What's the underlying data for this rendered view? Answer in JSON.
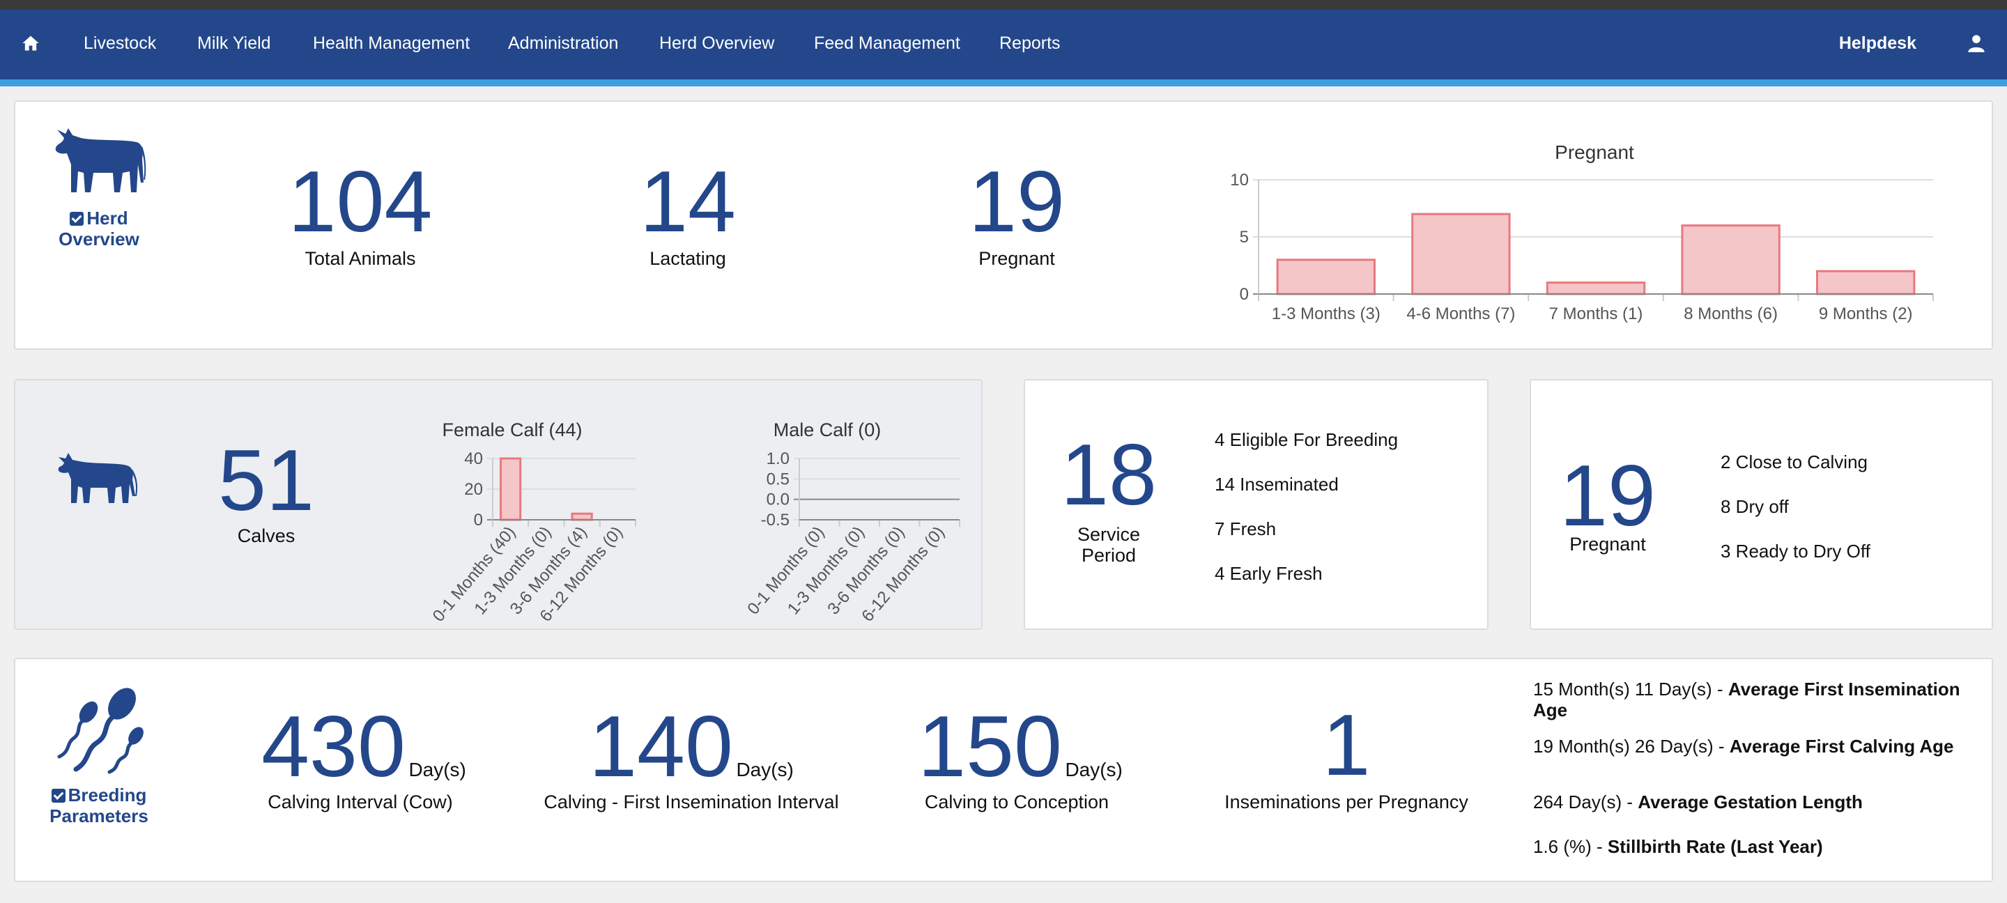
{
  "nav": {
    "items": [
      "Livestock",
      "Milk Yield",
      "Health Management",
      "Administration",
      "Herd Overview",
      "Feed Management",
      "Reports"
    ],
    "helpdesk": "Helpdesk"
  },
  "herd": {
    "title": "Herd Overview",
    "total": "104",
    "total_label": "Total Animals",
    "lactating": "14",
    "lactating_label": "Lactating",
    "pregnant": "19",
    "pregnant_label": "Pregnant"
  },
  "calves": {
    "count": "51",
    "label": "Calves"
  },
  "service": {
    "count": "18",
    "label": "Service Period",
    "items": [
      "4 Eligible For Breeding",
      "14 Inseminated",
      "7 Fresh",
      "4 Early Fresh"
    ]
  },
  "pregnancy": {
    "count": "19",
    "label": "Pregnant",
    "items": [
      "2 Close to Calving",
      "8 Dry off",
      "3 Ready to Dry Off"
    ]
  },
  "breeding": {
    "title": "Breeding Parameters",
    "calving_interval": "430",
    "calving_interval_unit": "Day(s)",
    "calving_interval_label": "Calving Interval (Cow)",
    "first_insem": "140",
    "first_insem_unit": "Day(s)",
    "first_insem_label": "Calving - First Insemination Interval",
    "conception": "150",
    "conception_unit": "Day(s)",
    "conception_label": "Calving to Conception",
    "insem_per_preg": "1",
    "insem_per_preg_label": "Inseminations per Pregnancy",
    "stats": [
      {
        "value": "15 Month(s) 11 Day(s) - ",
        "name": "Average First Insemination Age"
      },
      {
        "value": "19 Month(s) 26 Day(s) - ",
        "name": "Average First Calving Age"
      },
      {
        "value": "264 Day(s) - ",
        "name": "Average Gestation Length"
      },
      {
        "value": "1.6 (%) - ",
        "name": "Stillbirth Rate (Last Year)"
      }
    ]
  },
  "colors": {
    "brand": "#23478a",
    "accent": "#3d9ee0",
    "bar_fill": "#f4c6c8",
    "bar_stroke": "#e8797f"
  },
  "chart_data": [
    {
      "type": "bar",
      "title": "Pregnant",
      "categories": [
        "1-3 Months (3)",
        "4-6 Months (7)",
        "7 Months (1)",
        "8 Months (6)",
        "9 Months (2)"
      ],
      "values": [
        3,
        7,
        1,
        6,
        2
      ],
      "ylim": [
        0,
        10
      ],
      "yticks": [
        0,
        5,
        10
      ]
    },
    {
      "type": "bar",
      "title": "Female Calf (44)",
      "categories": [
        "0-1 Months (40)",
        "1-3 Months (0)",
        "3-6 Months (4)",
        "6-12 Months (0)"
      ],
      "values": [
        40,
        0,
        4,
        0
      ],
      "ylim": [
        0,
        40
      ],
      "yticks": [
        0,
        20,
        40
      ]
    },
    {
      "type": "bar",
      "title": "Male Calf (0)",
      "categories": [
        "0-1 Months (0)",
        "1-3 Months (0)",
        "3-6 Months (0)",
        "6-12 Months (0)"
      ],
      "values": [
        0,
        0,
        0,
        0
      ],
      "ylim": [
        -0.5,
        1.0
      ],
      "yticks": [
        -0.5,
        0,
        0.5,
        1.0
      ]
    }
  ]
}
